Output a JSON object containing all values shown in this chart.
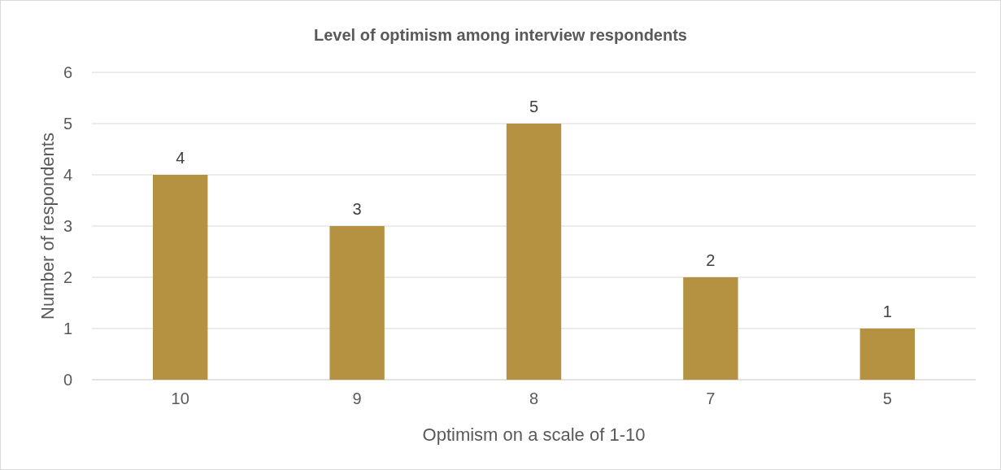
{
  "chart_data": {
    "type": "bar",
    "title": "Level of optimism among interview respondents",
    "xlabel": "Optimism on a scale of 1-10",
    "ylabel": "Number of respondents",
    "categories": [
      "10",
      "9",
      "8",
      "7",
      "5"
    ],
    "values": [
      4,
      3,
      5,
      2,
      1
    ],
    "color": "#b59142",
    "ylim": [
      0,
      6
    ],
    "yticks": [
      0,
      1,
      2,
      3,
      4,
      5,
      6
    ],
    "grid": "y",
    "data_labels": true
  }
}
